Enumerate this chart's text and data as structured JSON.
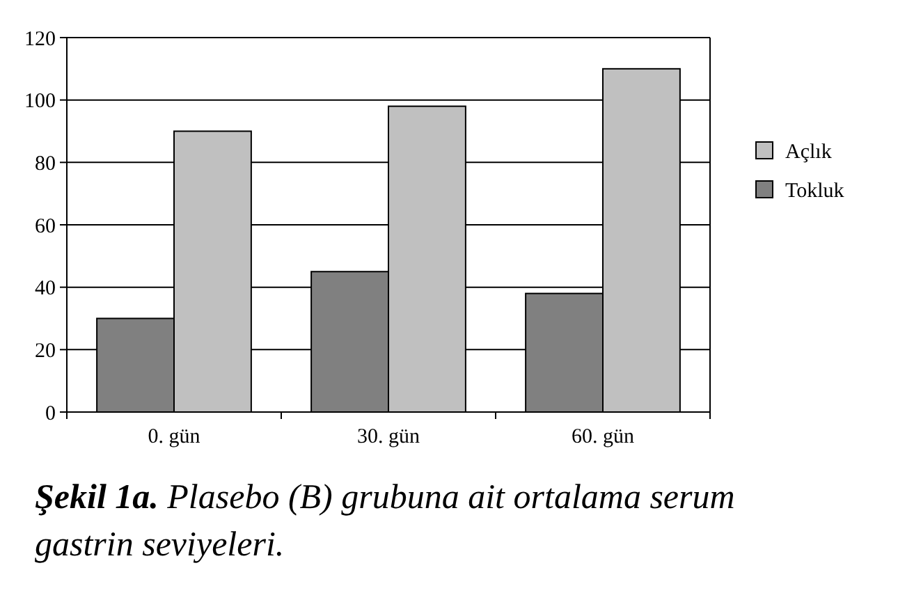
{
  "chart_data": {
    "type": "bar",
    "categories": [
      "0. gün",
      "30. gün",
      "60. gün"
    ],
    "series": [
      {
        "name": "Tokluk",
        "color": "#808080",
        "values": [
          30,
          45,
          38
        ]
      },
      {
        "name": "Açlık",
        "color": "#c0c0c0",
        "values": [
          90,
          98,
          110
        ]
      }
    ],
    "ylim": [
      0,
      120
    ],
    "yticks": [
      0,
      20,
      40,
      60,
      80,
      100,
      120
    ],
    "grid": "y",
    "legend": "right",
    "annotations": [
      "Şekil 1a.",
      "Plasebo (B) grubuna ait ortalama serum gastrin seviyeleri."
    ]
  }
}
